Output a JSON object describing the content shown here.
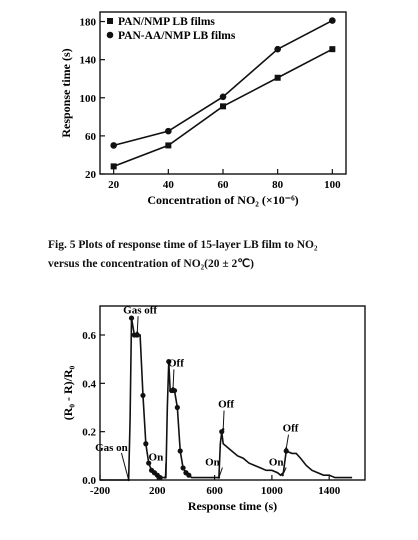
{
  "caption": {
    "line1": "Fig. 5    Plots of response time of 15-layer LB film to NO₂",
    "line2": "versus the concentration of NO₂(20 ± 2℃)"
  },
  "chart_data": [
    {
      "type": "line",
      "title": "",
      "xlabel": "Concentration of NO₂ (×10⁻⁶)",
      "ylabel": "Response time (s)",
      "xlim": [
        15,
        105
      ],
      "ylim": [
        20,
        190
      ],
      "x_ticks": [
        20,
        40,
        60,
        80,
        100
      ],
      "y_ticks": [
        20,
        60,
        100,
        140,
        180
      ],
      "grid": false,
      "legend_position": "top-left",
      "series": [
        {
          "name": "PAN/NMP LB films",
          "marker": "square",
          "x": [
            20,
            40,
            60,
            80,
            100
          ],
          "y": [
            28,
            50,
            91,
            121,
            151
          ]
        },
        {
          "name": "PAN-AA/NMP LB films",
          "marker": "circle",
          "x": [
            20,
            40,
            60,
            80,
            100
          ],
          "y": [
            50,
            65,
            101,
            151,
            181
          ]
        }
      ]
    },
    {
      "type": "line",
      "title": "",
      "xlabel": "Response time (s)",
      "ylabel": "(R₀ - R)/R₀",
      "xlim": [
        -200,
        1650
      ],
      "ylim": [
        0,
        0.72
      ],
      "x_ticks": [
        -200,
        200,
        600,
        1000,
        1400
      ],
      "y_ticks": [
        0.0,
        0.2,
        0.4,
        0.6
      ],
      "grid": false,
      "series": [
        {
          "x": [
            -200,
            0,
            10,
            20,
            40,
            60,
            80,
            100,
            120,
            140,
            160,
            180,
            200,
            220,
            240,
            260,
            270,
            280,
            290,
            300,
            320,
            340,
            360,
            380,
            400,
            420,
            440,
            460,
            480,
            500,
            520,
            560,
            590,
            610,
            630,
            640,
            650,
            660,
            680,
            700,
            720,
            760,
            800,
            840,
            880,
            920,
            960,
            1000,
            1040,
            1060,
            1080,
            1100,
            1140,
            1170,
            1200,
            1240,
            1280,
            1320,
            1360,
            1400,
            1440,
            1480,
            1520,
            1560
          ],
          "y": [
            0.0,
            0.0,
            0.25,
            0.67,
            0.6,
            0.6,
            0.6,
            0.35,
            0.15,
            0.07,
            0.04,
            0.03,
            0.02,
            0.01,
            0.01,
            0.01,
            0.3,
            0.49,
            0.37,
            0.37,
            0.37,
            0.3,
            0.12,
            0.05,
            0.03,
            0.02,
            0.01,
            0.01,
            0.01,
            0.01,
            0.01,
            0.01,
            0.01,
            0.01,
            0.01,
            0.15,
            0.2,
            0.15,
            0.14,
            0.13,
            0.12,
            0.1,
            0.09,
            0.07,
            0.06,
            0.05,
            0.04,
            0.04,
            0.03,
            0.02,
            0.03,
            0.12,
            0.11,
            0.11,
            0.09,
            0.06,
            0.04,
            0.03,
            0.02,
            0.02,
            0.01,
            0.01,
            0.01,
            0.01
          ],
          "markers": [
            [
              20,
              0.67
            ],
            [
              40,
              0.6
            ],
            [
              60,
              0.6
            ],
            [
              100,
              0.35
            ],
            [
              120,
              0.15
            ],
            [
              140,
              0.07
            ],
            [
              160,
              0.04
            ],
            [
              180,
              0.03
            ],
            [
              200,
              0.02
            ],
            [
              220,
              0.01
            ],
            [
              280,
              0.49
            ],
            [
              300,
              0.37
            ],
            [
              320,
              0.37
            ],
            [
              340,
              0.3
            ],
            [
              360,
              0.12
            ],
            [
              380,
              0.05
            ],
            [
              400,
              0.03
            ],
            [
              420,
              0.02
            ],
            [
              650,
              0.2
            ],
            [
              1100,
              0.12
            ]
          ]
        }
      ],
      "annotations": [
        {
          "text": "Gas on",
          "x": -120,
          "y": 0.12,
          "arrow_to": [
            0,
            0.0
          ]
        },
        {
          "text": "Gas off",
          "x": 80,
          "y": 0.69,
          "arrow_to": [
            60,
            0.61
          ]
        },
        {
          "text": "Off",
          "x": 330,
          "y": 0.47,
          "arrow_to": [
            310,
            0.38
          ]
        },
        {
          "text": "Off",
          "x": 680,
          "y": 0.3,
          "arrow_to": [
            660,
            0.21
          ]
        },
        {
          "text": "Off",
          "x": 1130,
          "y": 0.2,
          "arrow_to": [
            1100,
            0.13
          ]
        },
        {
          "text": "On",
          "x": 190,
          "y": 0.08,
          "arrow_to": [
            255,
            0.01
          ]
        },
        {
          "text": "On",
          "x": 585,
          "y": 0.06,
          "arrow_to": [
            630,
            0.01
          ]
        },
        {
          "text": "On",
          "x": 1030,
          "y": 0.06,
          "arrow_to": [
            1075,
            0.02
          ]
        }
      ]
    }
  ]
}
